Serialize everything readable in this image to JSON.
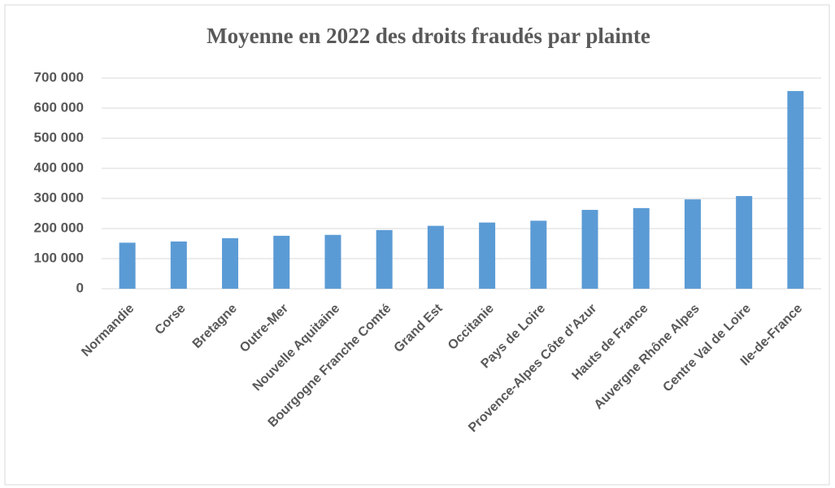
{
  "chart_data": {
    "type": "bar",
    "title": "Moyenne en 2022 des droits fraudés par plainte",
    "categories": [
      "Normandie",
      "Corse",
      "Bretagne",
      "Outre-Mer",
      "Nouvelle Aquitaine",
      "Bourgogne Franche Comté",
      "Grand Est",
      "Occitanie",
      "Pays de Loire",
      "Provence-Alpes Côte d’Azur",
      "Hauts de France",
      "Auvergne Rhône Alpes",
      "Centre Val de Loire",
      "Ile-de-France"
    ],
    "values": [
      153000,
      157000,
      168000,
      176000,
      179000,
      195000,
      209000,
      220000,
      226000,
      262000,
      268000,
      297000,
      308000,
      657000
    ],
    "color": "#5b9bd5",
    "ylim": [
      0,
      700000
    ],
    "yticks": [
      {
        "value": 0,
        "label": "0"
      },
      {
        "value": 100000,
        "label": "100 000"
      },
      {
        "value": 200000,
        "label": "200 000"
      },
      {
        "value": 300000,
        "label": "300 000"
      },
      {
        "value": 400000,
        "label": "400 000"
      },
      {
        "value": 500000,
        "label": "500 000"
      },
      {
        "value": 600000,
        "label": "600 000"
      },
      {
        "value": 700000,
        "label": "700 000"
      }
    ],
    "grid": true
  }
}
